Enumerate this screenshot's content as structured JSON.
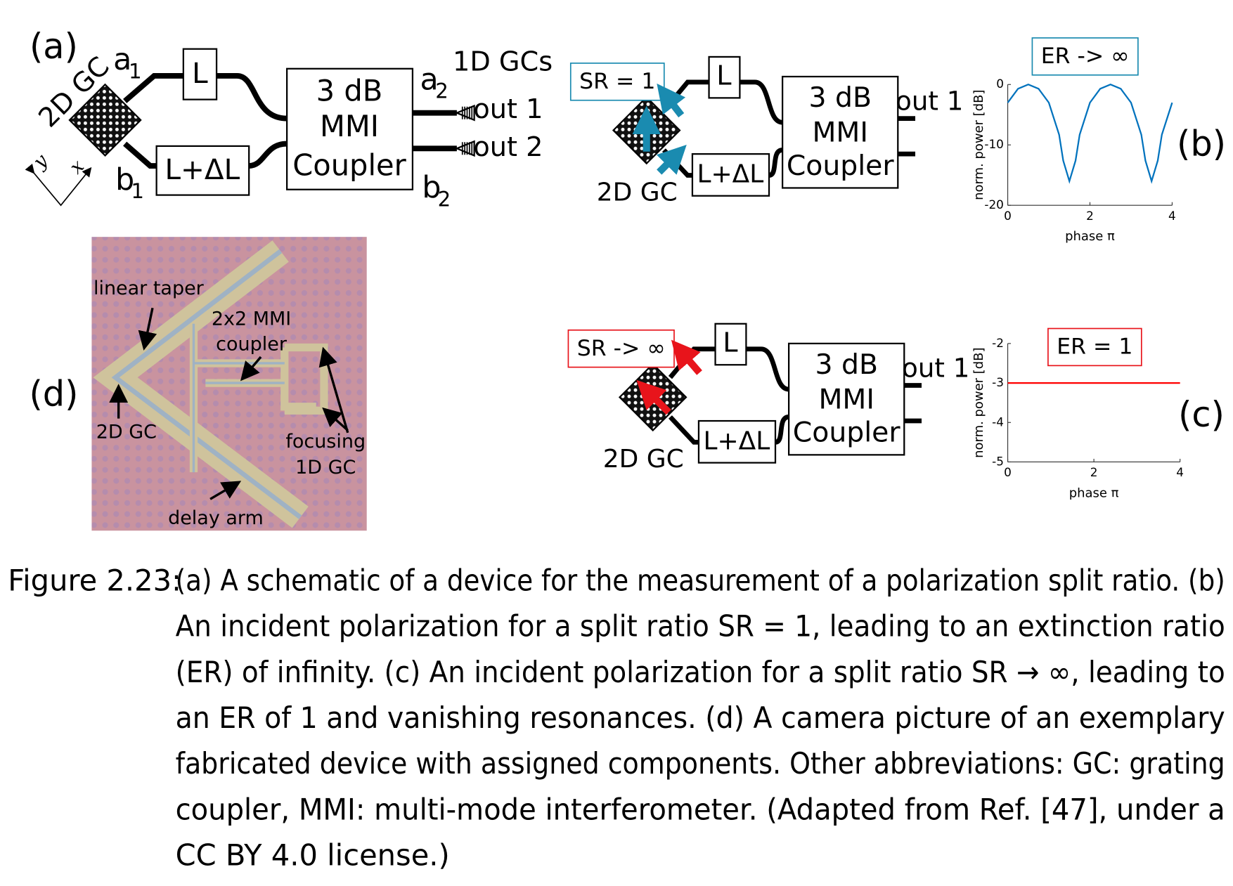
{
  "figure": {
    "panel_a": {
      "label": "(a)",
      "gc_label": "2D GC",
      "axis_y": "y",
      "axis_x": "x",
      "delay_short": "L",
      "delay_long": "L+ΔL",
      "mmi": [
        "3 dB",
        "MMI",
        "Coupler"
      ],
      "out_gcs": "1D GCs",
      "outputs": [
        "out 1",
        "out 2"
      ],
      "ports": [
        {
          "name": "a",
          "sub": "1"
        },
        {
          "name": "b",
          "sub": "1"
        },
        {
          "name": "a",
          "sub": "2"
        },
        {
          "name": "b",
          "sub": "2"
        }
      ]
    },
    "panel_b": {
      "label": "(b)",
      "split_ratio": "SR = 1",
      "gc_label": "2D GC",
      "delay_short": "L",
      "delay_long": "L+ΔL",
      "mmi": [
        "3 dB",
        "MMI",
        "Coupler"
      ],
      "output": "out 1",
      "extinction_ratio": "ER -> ∞",
      "color": "#1a8bb0"
    },
    "panel_c": {
      "label": "(c)",
      "split_ratio": "SR -> ∞",
      "gc_label": "2D GC",
      "delay_short": "L",
      "delay_long": "L+ΔL",
      "mmi": [
        "3 dB",
        "MMI",
        "Coupler"
      ],
      "output": "out 1",
      "extinction_ratio": "ER = 1",
      "color": "#e8141b"
    },
    "panel_d": {
      "label": "(d)",
      "annotations": [
        "linear taper",
        "2x2 MMI",
        "coupler",
        "2D GC",
        "focusing",
        "1D GC",
        "delay arm"
      ]
    }
  },
  "chart_data": [
    {
      "type": "line",
      "xlabel": "phase π",
      "ylabel": "norm. power [dB]",
      "x": [
        0,
        0.25,
        0.5,
        0.75,
        1,
        1.25,
        1.35,
        1.5,
        1.65,
        1.75,
        2,
        2.25,
        2.5,
        2.75,
        3,
        3.25,
        3.35,
        3.5,
        3.65,
        3.75,
        4
      ],
      "series": [
        {
          "color": "#0072bd",
          "values": [
            -3,
            -0.7,
            0,
            -0.7,
            -3,
            -8.3,
            -12.6,
            -16,
            -12.6,
            -8.3,
            -3,
            -0.7,
            0,
            -0.7,
            -3,
            -8.3,
            -12.6,
            -16,
            -12.6,
            -8.3,
            -3
          ]
        }
      ],
      "xlim": [
        0,
        4
      ],
      "ylim": [
        -20,
        0
      ],
      "xticks": [
        0,
        2,
        4
      ],
      "yticks": [
        0,
        -10,
        -20
      ]
    },
    {
      "type": "line",
      "xlabel": "phase π",
      "ylabel": "norm. power [dB]",
      "x": [
        0,
        4
      ],
      "series": [
        {
          "color": "#ff0000",
          "values": [
            -3,
            -3
          ]
        }
      ],
      "xlim": [
        0,
        4
      ],
      "ylim": [
        -5,
        -2
      ],
      "xticks": [
        0,
        2,
        4
      ],
      "yticks": [
        -5,
        -4,
        -3,
        -2
      ]
    }
  ],
  "caption": {
    "label": "Figure 2.23:",
    "lines": [
      "(a) A schematic of a device for the measurement of a polarization split ratio. (b)",
      "An incident polarization for a split ratio SR = 1, leading to an extinction ratio",
      "(ER) of infinity. (c) An incident polarization for a split ratio SR → ∞, leading to",
      "an ER of 1 and vanishing resonances. (d) A camera picture of an exemplary",
      "fabricated device with assigned components. Other abbreviations: GC: grating",
      "coupler, MMI: multi-mode interferometer. (Adapted from Ref. [47], under a",
      "CC BY 4.0 license.)"
    ]
  }
}
